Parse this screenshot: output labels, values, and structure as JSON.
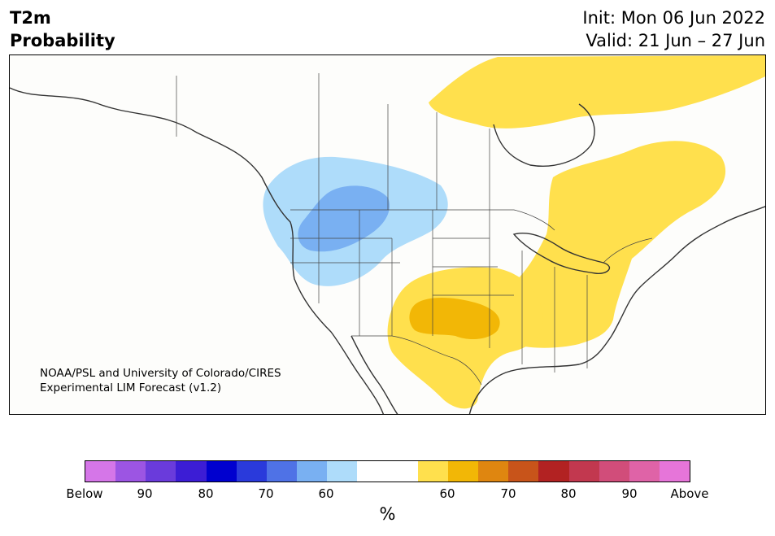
{
  "title": {
    "line1": "T2m",
    "line2": "Probability",
    "init": "Init: Mon 06 Jun 2022",
    "valid": "Valid: 21 Jun – 27 Jun"
  },
  "credit": {
    "line1": "NOAA/PSL and University of Colorado/CIRES",
    "line2": "Experimental LIM Forecast (v1.2)"
  },
  "colorbar": {
    "colors": [
      "#d576e8",
      "#9c55e3",
      "#6a3bdb",
      "#3c1dd5",
      "#0000cf",
      "#2a3adb",
      "#4f72e6",
      "#79b0f2",
      "#aedcfa",
      "#ffffff",
      "#ffffff",
      "#ffe04d",
      "#f2b706",
      "#df8610",
      "#c8541a",
      "#b22222",
      "#c2384f",
      "#d14d7a",
      "#df63a7",
      "#e675d9"
    ],
    "tick_labels": [
      "Below",
      "90",
      "80",
      "70",
      "60",
      "60",
      "70",
      "80",
      "90",
      "Above"
    ],
    "unit": "%"
  },
  "map": {
    "legend_categories": {
      "below_60": "#aedcfa",
      "below_70": "#79b0f2",
      "above_60": "#ffe04d",
      "above_70": "#f2b706"
    }
  }
}
